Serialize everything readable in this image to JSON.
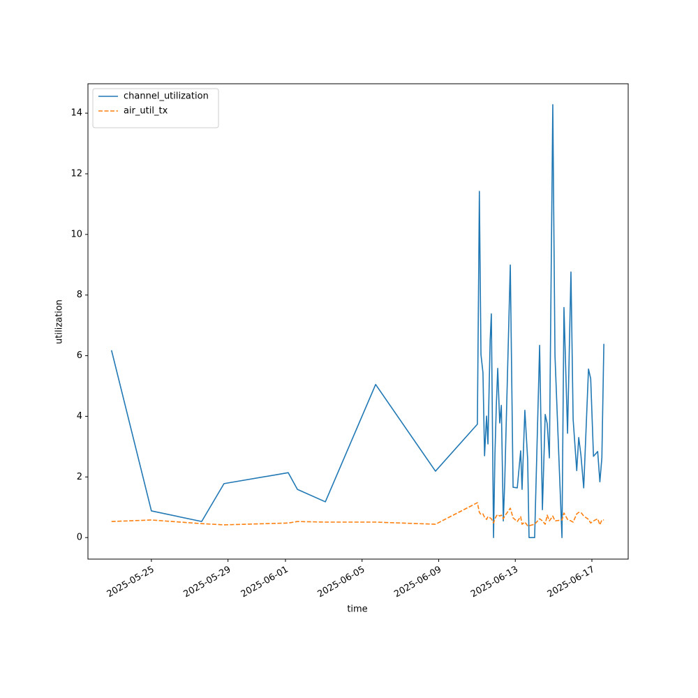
{
  "chart_data": {
    "type": "line",
    "xlabel": "time",
    "ylabel": "utilization",
    "x": [
      "2025-05-22T22:00",
      "2025-05-25T00:00",
      "2025-05-27T15:00",
      "2025-05-28T19:00",
      "2025-06-01T03:30",
      "2025-06-01T15:00",
      "2025-06-03T02:00",
      "2025-06-05T17:00",
      "2025-06-08T20:00",
      "2025-06-11T00:30",
      "2025-06-11T03:00",
      "2025-06-11T05:00",
      "2025-06-11T07:30",
      "2025-06-11T09:30",
      "2025-06-11T12:00",
      "2025-06-11T13:45",
      "2025-06-11T16:30",
      "2025-06-11T18:00",
      "2025-06-11T20:45",
      "2025-06-11T22:30",
      "2025-06-12T00:15",
      "2025-06-12T02:00",
      "2025-06-12T04:30",
      "2025-06-12T06:30",
      "2025-06-12T09:00",
      "2025-06-12T10:45",
      "2025-06-12T17:45",
      "2025-06-12T21:15",
      "2025-06-13T02:30",
      "2025-06-13T06:45",
      "2025-06-13T08:30",
      "2025-06-13T12:00",
      "2025-06-13T15:30",
      "2025-06-13T17:15",
      "2025-06-14T00:15",
      "2025-06-14T06:30",
      "2025-06-14T10:00",
      "2025-06-14T13:30",
      "2025-06-14T16:00",
      "2025-06-14T18:45",
      "2025-06-14T23:00",
      "2025-06-15T01:45",
      "2025-06-15T10:30",
      "2025-06-15T13:00",
      "2025-06-15T17:30",
      "2025-06-15T21:45",
      "2025-06-16T00:30",
      "2025-06-16T05:00",
      "2025-06-16T07:30",
      "2025-06-16T10:15",
      "2025-06-16T13:45",
      "2025-06-16T19:45",
      "2025-06-16T22:30",
      "2025-06-17T02:00",
      "2025-06-17T07:15",
      "2025-06-17T10:00",
      "2025-06-17T12:30",
      "2025-06-17T15:00"
    ],
    "series": [
      {
        "name": "channel_utilization",
        "color": "#1f77b4",
        "dash": "solid",
        "values": [
          6.18,
          0.88,
          0.53,
          1.78,
          2.14,
          1.59,
          1.18,
          5.05,
          2.19,
          3.74,
          11.42,
          6.04,
          5.44,
          2.7,
          4.01,
          3.09,
          6.5,
          7.38,
          0,
          2.74,
          4.36,
          5.58,
          3.78,
          4.36,
          0.55,
          1.82,
          8.99,
          1.66,
          1.64,
          2.86,
          1.59,
          4.2,
          2.58,
          0,
          0,
          6.34,
          0.92,
          4.06,
          3.76,
          2.63,
          14.28,
          6.0,
          0,
          7.59,
          3.44,
          8.76,
          3.9,
          2.21,
          3.3,
          2.72,
          1.64,
          5.56,
          5.24,
          2.68,
          2.84,
          1.84,
          2.63,
          6.39
        ]
      },
      {
        "name": "air_util_tx",
        "color": "#ff7f0e",
        "dash": "dashed",
        "values": [
          0.53,
          0.58,
          0.46,
          0.42,
          0.48,
          0.53,
          0.51,
          0.51,
          0.44,
          1.15,
          0.83,
          0.76,
          0.78,
          0.67,
          0.6,
          0.69,
          0.65,
          0.62,
          0.48,
          0.62,
          0.71,
          0.76,
          0.71,
          0.74,
          0.62,
          0.71,
          0.97,
          0.65,
          0.53,
          0.69,
          0.44,
          0.51,
          0.39,
          0.39,
          0.44,
          0.62,
          0.55,
          0.44,
          0.74,
          0.55,
          0.71,
          0.55,
          0.58,
          0.81,
          0.6,
          0.55,
          0.51,
          0.78,
          0.83,
          0.83,
          0.71,
          0.6,
          0.48,
          0.55,
          0.62,
          0.42,
          0.58,
          0.58
        ]
      }
    ],
    "xlim": [
      "2025-05-21T16:30",
      "2025-06-18T21:30"
    ],
    "xticks": [
      "2025-05-25",
      "2025-05-29",
      "2025-06-01",
      "2025-06-05",
      "2025-06-09",
      "2025-06-13",
      "2025-06-17"
    ],
    "ylim": [
      -0.71,
      14.97
    ],
    "yticks": [
      0,
      2,
      4,
      6,
      8,
      10,
      12,
      14
    ],
    "grid": false,
    "legend": "upper left"
  }
}
